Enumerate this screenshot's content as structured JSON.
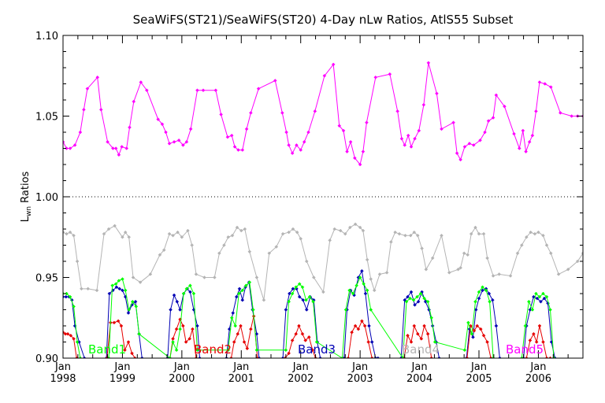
{
  "chart_data": {
    "type": "line",
    "title": "SeaWiFS(ST21)/SeaWiFS(ST20) 4-Day nLw Ratios, AtlS55 Subset",
    "ylabel_main": "L",
    "ylabel_sub": "wn",
    "ylabel_rest": " Ratios",
    "xlim": [
      1998.0,
      2006.75
    ],
    "ylim": [
      0.9,
      1.1
    ],
    "y_ticks": [
      "0.90",
      "0.95",
      "1.00",
      "1.05",
      "1.10"
    ],
    "y_tick_values": [
      0.9,
      0.95,
      1.0,
      1.05,
      1.1
    ],
    "x_ticks": [
      {
        "top": "Jan",
        "bottom": "1998",
        "x": 1998.0
      },
      {
        "top": "Jan",
        "bottom": "1999",
        "x": 1999.0
      },
      {
        "top": "Jan",
        "bottom": "2000",
        "x": 2000.0
      },
      {
        "top": "Jan",
        "bottom": "2001",
        "x": 2001.0
      },
      {
        "top": "Jan",
        "bottom": "2002",
        "x": 2002.0
      },
      {
        "top": "Jan",
        "bottom": "2003",
        "x": 2003.0
      },
      {
        "top": "Jan",
        "bottom": "2004",
        "x": 2004.0
      },
      {
        "top": "Jan",
        "bottom": "2005",
        "x": 2005.0
      },
      {
        "top": "Jan",
        "bottom": "2006",
        "x": 2006.0
      }
    ],
    "reference_line": 1.0,
    "series": [
      {
        "name": "Band5",
        "color": "#ff00ff",
        "x": [
          1998.0,
          1998.06,
          1998.12,
          1998.2,
          1998.29,
          1998.35,
          1998.41,
          1998.58,
          1998.64,
          1998.75,
          1998.84,
          1998.89,
          1998.94,
          1998.99,
          1999.07,
          1999.12,
          1999.19,
          1999.31,
          1999.41,
          1999.6,
          1999.67,
          1999.73,
          1999.79,
          1999.87,
          1999.95,
          2000.02,
          2000.08,
          2000.15,
          2000.26,
          2000.36,
          2000.57,
          2000.66,
          2000.77,
          2000.84,
          2000.89,
          2000.95,
          2001.02,
          2001.09,
          2001.16,
          2001.29,
          2001.57,
          2001.69,
          2001.76,
          2001.8,
          2001.86,
          2001.93,
          2002.0,
          2002.06,
          2002.13,
          2002.24,
          2002.4,
          2002.55,
          2002.65,
          2002.72,
          2002.78,
          2002.84,
          2002.91,
          2003.0,
          2003.05,
          2003.11,
          2003.26,
          2003.5,
          2003.63,
          2003.7,
          2003.75,
          2003.81,
          2003.86,
          2003.92,
          2003.99,
          2004.07,
          2004.15,
          2004.29,
          2004.37,
          2004.57,
          2004.63,
          2004.69,
          2004.76,
          2004.84,
          2004.91,
          2005.02,
          2005.1,
          2005.16,
          2005.24,
          2005.29,
          2005.43,
          2005.59,
          2005.68,
          2005.74,
          2005.79,
          2005.85,
          2005.9,
          2005.96,
          2006.02,
          2006.11,
          2006.21,
          2006.37,
          2006.56,
          2006.66,
          2006.75
        ],
        "y": [
          1.034,
          1.03,
          1.03,
          1.032,
          1.04,
          1.054,
          1.067,
          1.074,
          1.054,
          1.034,
          1.03,
          1.03,
          1.026,
          1.031,
          1.03,
          1.043,
          1.059,
          1.071,
          1.066,
          1.048,
          1.045,
          1.04,
          1.033,
          1.034,
          1.035,
          1.032,
          1.034,
          1.042,
          1.066,
          1.066,
          1.066,
          1.051,
          1.037,
          1.038,
          1.031,
          1.029,
          1.029,
          1.042,
          1.052,
          1.067,
          1.072,
          1.052,
          1.04,
          1.032,
          1.027,
          1.032,
          1.029,
          1.034,
          1.04,
          1.053,
          1.075,
          1.082,
          1.044,
          1.041,
          1.028,
          1.034,
          1.024,
          1.02,
          1.028,
          1.046,
          1.074,
          1.076,
          1.053,
          1.036,
          1.032,
          1.038,
          1.031,
          1.036,
          1.041,
          1.057,
          1.083,
          1.064,
          1.042,
          1.046,
          1.027,
          1.023,
          1.031,
          1.033,
          1.032,
          1.035,
          1.04,
          1.047,
          1.049,
          1.063,
          1.056,
          1.039,
          1.03,
          1.041,
          1.028,
          1.034,
          1.038,
          1.053,
          1.071,
          1.07,
          1.068,
          1.052,
          1.05,
          1.05,
          1.05
        ]
      },
      {
        "name": "Band4",
        "color": "#b4b4b4",
        "x": [
          1998.0,
          1998.06,
          1998.12,
          1998.18,
          1998.24,
          1998.31,
          1998.42,
          1998.57,
          1998.69,
          1998.77,
          1998.87,
          1999.0,
          1999.05,
          1999.11,
          1999.18,
          1999.3,
          1999.47,
          1999.63,
          1999.7,
          1999.79,
          1999.85,
          1999.93,
          2000.0,
          2000.1,
          2000.17,
          2000.24,
          2000.38,
          2000.55,
          2000.63,
          2000.71,
          2000.78,
          2000.85,
          2000.93,
          2001.0,
          2001.06,
          2001.14,
          2001.26,
          2001.38,
          2001.47,
          2001.59,
          2001.7,
          2001.8,
          2001.87,
          2001.94,
          2002.0,
          2002.1,
          2002.22,
          2002.38,
          2002.49,
          2002.57,
          2002.67,
          2002.75,
          2002.83,
          2002.92,
          2003.0,
          2003.05,
          2003.12,
          2003.18,
          2003.24,
          2003.33,
          2003.45,
          2003.52,
          2003.59,
          2003.66,
          2003.76,
          2003.85,
          2003.91,
          2003.97,
          2004.04,
          2004.11,
          2004.22,
          2004.37,
          2004.5,
          2004.65,
          2004.69,
          2004.75,
          2004.81,
          2004.87,
          2004.94,
          2005.0,
          2005.08,
          2005.14,
          2005.24,
          2005.34,
          2005.53,
          2005.65,
          2005.72,
          2005.8,
          2005.87,
          2005.94,
          2006.0,
          2006.08,
          2006.14,
          2006.21,
          2006.34,
          2006.5,
          2006.66,
          2006.75
        ],
        "y": [
          0.978,
          0.977,
          0.978,
          0.976,
          0.96,
          0.943,
          0.943,
          0.942,
          0.977,
          0.98,
          0.982,
          0.975,
          0.978,
          0.975,
          0.95,
          0.947,
          0.952,
          0.964,
          0.967,
          0.977,
          0.976,
          0.978,
          0.975,
          0.979,
          0.97,
          0.952,
          0.95,
          0.95,
          0.965,
          0.97,
          0.975,
          0.976,
          0.981,
          0.979,
          0.98,
          0.966,
          0.95,
          0.936,
          0.965,
          0.969,
          0.977,
          0.978,
          0.98,
          0.978,
          0.974,
          0.96,
          0.95,
          0.941,
          0.973,
          0.98,
          0.979,
          0.977,
          0.981,
          0.983,
          0.981,
          0.979,
          0.961,
          0.949,
          0.942,
          0.952,
          0.953,
          0.972,
          0.978,
          0.977,
          0.976,
          0.976,
          0.978,
          0.976,
          0.968,
          0.955,
          0.962,
          0.976,
          0.953,
          0.955,
          0.956,
          0.965,
          0.964,
          0.977,
          0.981,
          0.977,
          0.977,
          0.962,
          0.951,
          0.952,
          0.951,
          0.965,
          0.97,
          0.975,
          0.978,
          0.977,
          0.978,
          0.976,
          0.97,
          0.965,
          0.952,
          0.955,
          0.96,
          0.965
        ]
      },
      {
        "name": "Band3",
        "color": "#0000b4",
        "x": [
          1998.0,
          1998.05,
          1998.1,
          1998.15,
          1998.2,
          1998.27,
          1998.36,
          1998.73,
          1998.78,
          1998.84,
          1998.9,
          1998.95,
          1999.0,
          1999.05,
          1999.1,
          1999.16,
          1999.22,
          1999.28,
          1999.33,
          1999.76,
          1999.81,
          1999.87,
          1999.92,
          1999.97,
          2000.03,
          2000.09,
          2000.14,
          2000.2,
          2000.26,
          2000.3,
          2000.75,
          2000.8,
          2000.86,
          2000.92,
          2000.97,
          2001.02,
          2001.07,
          2001.13,
          2001.19,
          2001.26,
          2001.3,
          2001.7,
          2001.75,
          2001.81,
          2001.87,
          2001.93,
          2001.98,
          2002.04,
          2002.1,
          2002.16,
          2002.22,
          2002.28,
          2002.33,
          2002.73,
          2002.78,
          2002.84,
          2002.9,
          2002.97,
          2003.03,
          2003.09,
          2003.15,
          2003.2,
          2003.26,
          2003.3,
          2003.69,
          2003.75,
          2003.8,
          2003.86,
          2003.92,
          2003.98,
          2004.04,
          2004.1,
          2004.16,
          2004.22,
          2004.28,
          2004.33,
          2004.79,
          2004.84,
          2004.9,
          2004.95,
          2005.0,
          2005.06,
          2005.12,
          2005.17,
          2005.23,
          2005.29,
          2005.35,
          2005.75,
          2005.8,
          2005.86,
          2005.92,
          2005.98,
          2006.04,
          2006.1,
          2006.16,
          2006.22,
          2006.28
        ],
        "y": [
          0.938,
          0.938,
          0.938,
          0.936,
          0.92,
          0.91,
          0.9,
          0.9,
          0.94,
          0.942,
          0.944,
          0.943,
          0.942,
          0.938,
          0.928,
          0.933,
          0.935,
          0.915,
          0.9,
          0.9,
          0.93,
          0.939,
          0.935,
          0.93,
          0.94,
          0.943,
          0.941,
          0.93,
          0.92,
          0.9,
          0.9,
          0.918,
          0.928,
          0.938,
          0.943,
          0.936,
          0.944,
          0.947,
          0.93,
          0.915,
          0.9,
          0.9,
          0.93,
          0.94,
          0.943,
          0.943,
          0.938,
          0.936,
          0.93,
          0.938,
          0.936,
          0.91,
          0.9,
          0.9,
          0.93,
          0.942,
          0.939,
          0.95,
          0.954,
          0.94,
          0.92,
          0.91,
          0.9,
          0.9,
          0.9,
          0.936,
          0.938,
          0.941,
          0.933,
          0.935,
          0.941,
          0.935,
          0.93,
          0.92,
          0.91,
          0.9,
          0.9,
          0.918,
          0.913,
          0.93,
          0.937,
          0.942,
          0.943,
          0.94,
          0.936,
          0.92,
          0.9,
          0.9,
          0.92,
          0.93,
          0.938,
          0.937,
          0.935,
          0.937,
          0.934,
          0.91,
          0.9
        ]
      },
      {
        "name": "Band2",
        "color": "#e60000",
        "x": [
          1998.0,
          1998.04,
          1998.08,
          1998.13,
          1998.18,
          1998.23,
          1998.74,
          1998.8,
          1998.86,
          1998.93,
          1998.98,
          1999.04,
          1999.1,
          1999.16,
          1999.21,
          1999.8,
          1999.85,
          1999.91,
          1999.97,
          2000.02,
          2000.07,
          2000.13,
          2000.18,
          2000.24,
          2000.83,
          2000.88,
          2000.94,
          2000.99,
          2001.05,
          2001.1,
          2001.16,
          2001.21,
          2001.27,
          2001.74,
          2001.8,
          2001.86,
          2001.92,
          2001.97,
          2002.03,
          2002.08,
          2002.14,
          2002.2,
          2002.25,
          2002.8,
          2002.86,
          2002.92,
          2002.97,
          2003.03,
          2003.08,
          2003.14,
          2003.2,
          2003.74,
          2003.8,
          2003.86,
          2003.91,
          2003.97,
          2004.03,
          2004.08,
          2004.14,
          2004.2,
          2004.8,
          2004.86,
          2004.92,
          2004.97,
          2005.03,
          2005.08,
          2005.14,
          2005.2,
          2005.8,
          2005.86,
          2005.92,
          2005.97,
          2006.02,
          2006.08,
          2006.14,
          2006.2
        ],
        "y": [
          0.916,
          0.915,
          0.915,
          0.914,
          0.912,
          0.9,
          0.9,
          0.922,
          0.922,
          0.923,
          0.92,
          0.905,
          0.91,
          0.903,
          0.9,
          0.9,
          0.912,
          0.918,
          0.924,
          0.92,
          0.91,
          0.912,
          0.918,
          0.9,
          0.9,
          0.91,
          0.915,
          0.92,
          0.91,
          0.906,
          0.918,
          0.926,
          0.9,
          0.9,
          0.903,
          0.911,
          0.915,
          0.92,
          0.915,
          0.911,
          0.913,
          0.905,
          0.9,
          0.9,
          0.916,
          0.92,
          0.918,
          0.923,
          0.92,
          0.91,
          0.9,
          0.9,
          0.914,
          0.91,
          0.92,
          0.915,
          0.912,
          0.92,
          0.915,
          0.9,
          0.9,
          0.92,
          0.917,
          0.92,
          0.918,
          0.914,
          0.91,
          0.9,
          0.9,
          0.911,
          0.915,
          0.91,
          0.92,
          0.91,
          0.9,
          0.9
        ]
      },
      {
        "name": "Band1",
        "color": "#00ff00",
        "x": [
          1998.0,
          1998.06,
          1998.12,
          1998.18,
          1998.24,
          1998.29,
          1998.77,
          1998.83,
          1998.89,
          1998.94,
          1999.0,
          1999.05,
          1999.11,
          1999.17,
          1999.23,
          1999.28,
          1999.8,
          1999.85,
          1999.91,
          1999.97,
          2000.03,
          2000.08,
          2000.14,
          2000.2,
          2000.26,
          2000.78,
          2000.84,
          2000.9,
          2000.96,
          2001.02,
          2001.08,
          2001.14,
          2001.2,
          2001.26,
          2001.75,
          2001.8,
          2001.86,
          2001.92,
          2001.98,
          2002.03,
          2002.09,
          2002.15,
          2002.21,
          2002.27,
          2002.7,
          2002.76,
          2002.82,
          2002.88,
          2002.94,
          2003.0,
          2003.06,
          2003.12,
          2003.18,
          2003.72,
          2003.78,
          2003.84,
          2003.9,
          2003.96,
          2004.02,
          2004.08,
          2004.14,
          2004.2,
          2004.26,
          2004.76,
          2004.82,
          2004.88,
          2004.94,
          2005.0,
          2005.06,
          2005.12,
          2005.18,
          2005.24,
          2005.72,
          2005.78,
          2005.84,
          2005.9,
          2005.96,
          2006.02,
          2006.08,
          2006.14,
          2006.2,
          2006.26
        ],
        "y": [
          0.94,
          0.94,
          0.938,
          0.932,
          0.91,
          0.9,
          0.9,
          0.945,
          0.946,
          0.948,
          0.949,
          0.942,
          0.93,
          0.935,
          0.932,
          0.915,
          0.9,
          0.91,
          0.905,
          0.918,
          0.94,
          0.943,
          0.945,
          0.94,
          0.905,
          0.905,
          0.925,
          0.92,
          0.94,
          0.942,
          0.945,
          0.947,
          0.93,
          0.905,
          0.905,
          0.935,
          0.94,
          0.944,
          0.946,
          0.944,
          0.936,
          0.938,
          0.935,
          0.91,
          0.9,
          0.93,
          0.942,
          0.94,
          0.945,
          0.95,
          0.946,
          0.942,
          0.93,
          0.9,
          0.935,
          0.937,
          0.936,
          0.938,
          0.94,
          0.937,
          0.935,
          0.925,
          0.91,
          0.905,
          0.922,
          0.915,
          0.935,
          0.941,
          0.944,
          0.942,
          0.935,
          0.9,
          0.9,
          0.92,
          0.935,
          0.93,
          0.94,
          0.938,
          0.94,
          0.938,
          0.93,
          0.9
        ]
      }
    ],
    "legend": [
      {
        "label": "Band1",
        "color": "#00ff00"
      },
      {
        "label": "Band2",
        "color": "#e60000"
      },
      {
        "label": "Band3",
        "color": "#0000b4"
      },
      {
        "label": "Band4",
        "color": "#b4b4b4"
      },
      {
        "label": "Band5",
        "color": "#ff00ff"
      }
    ]
  }
}
